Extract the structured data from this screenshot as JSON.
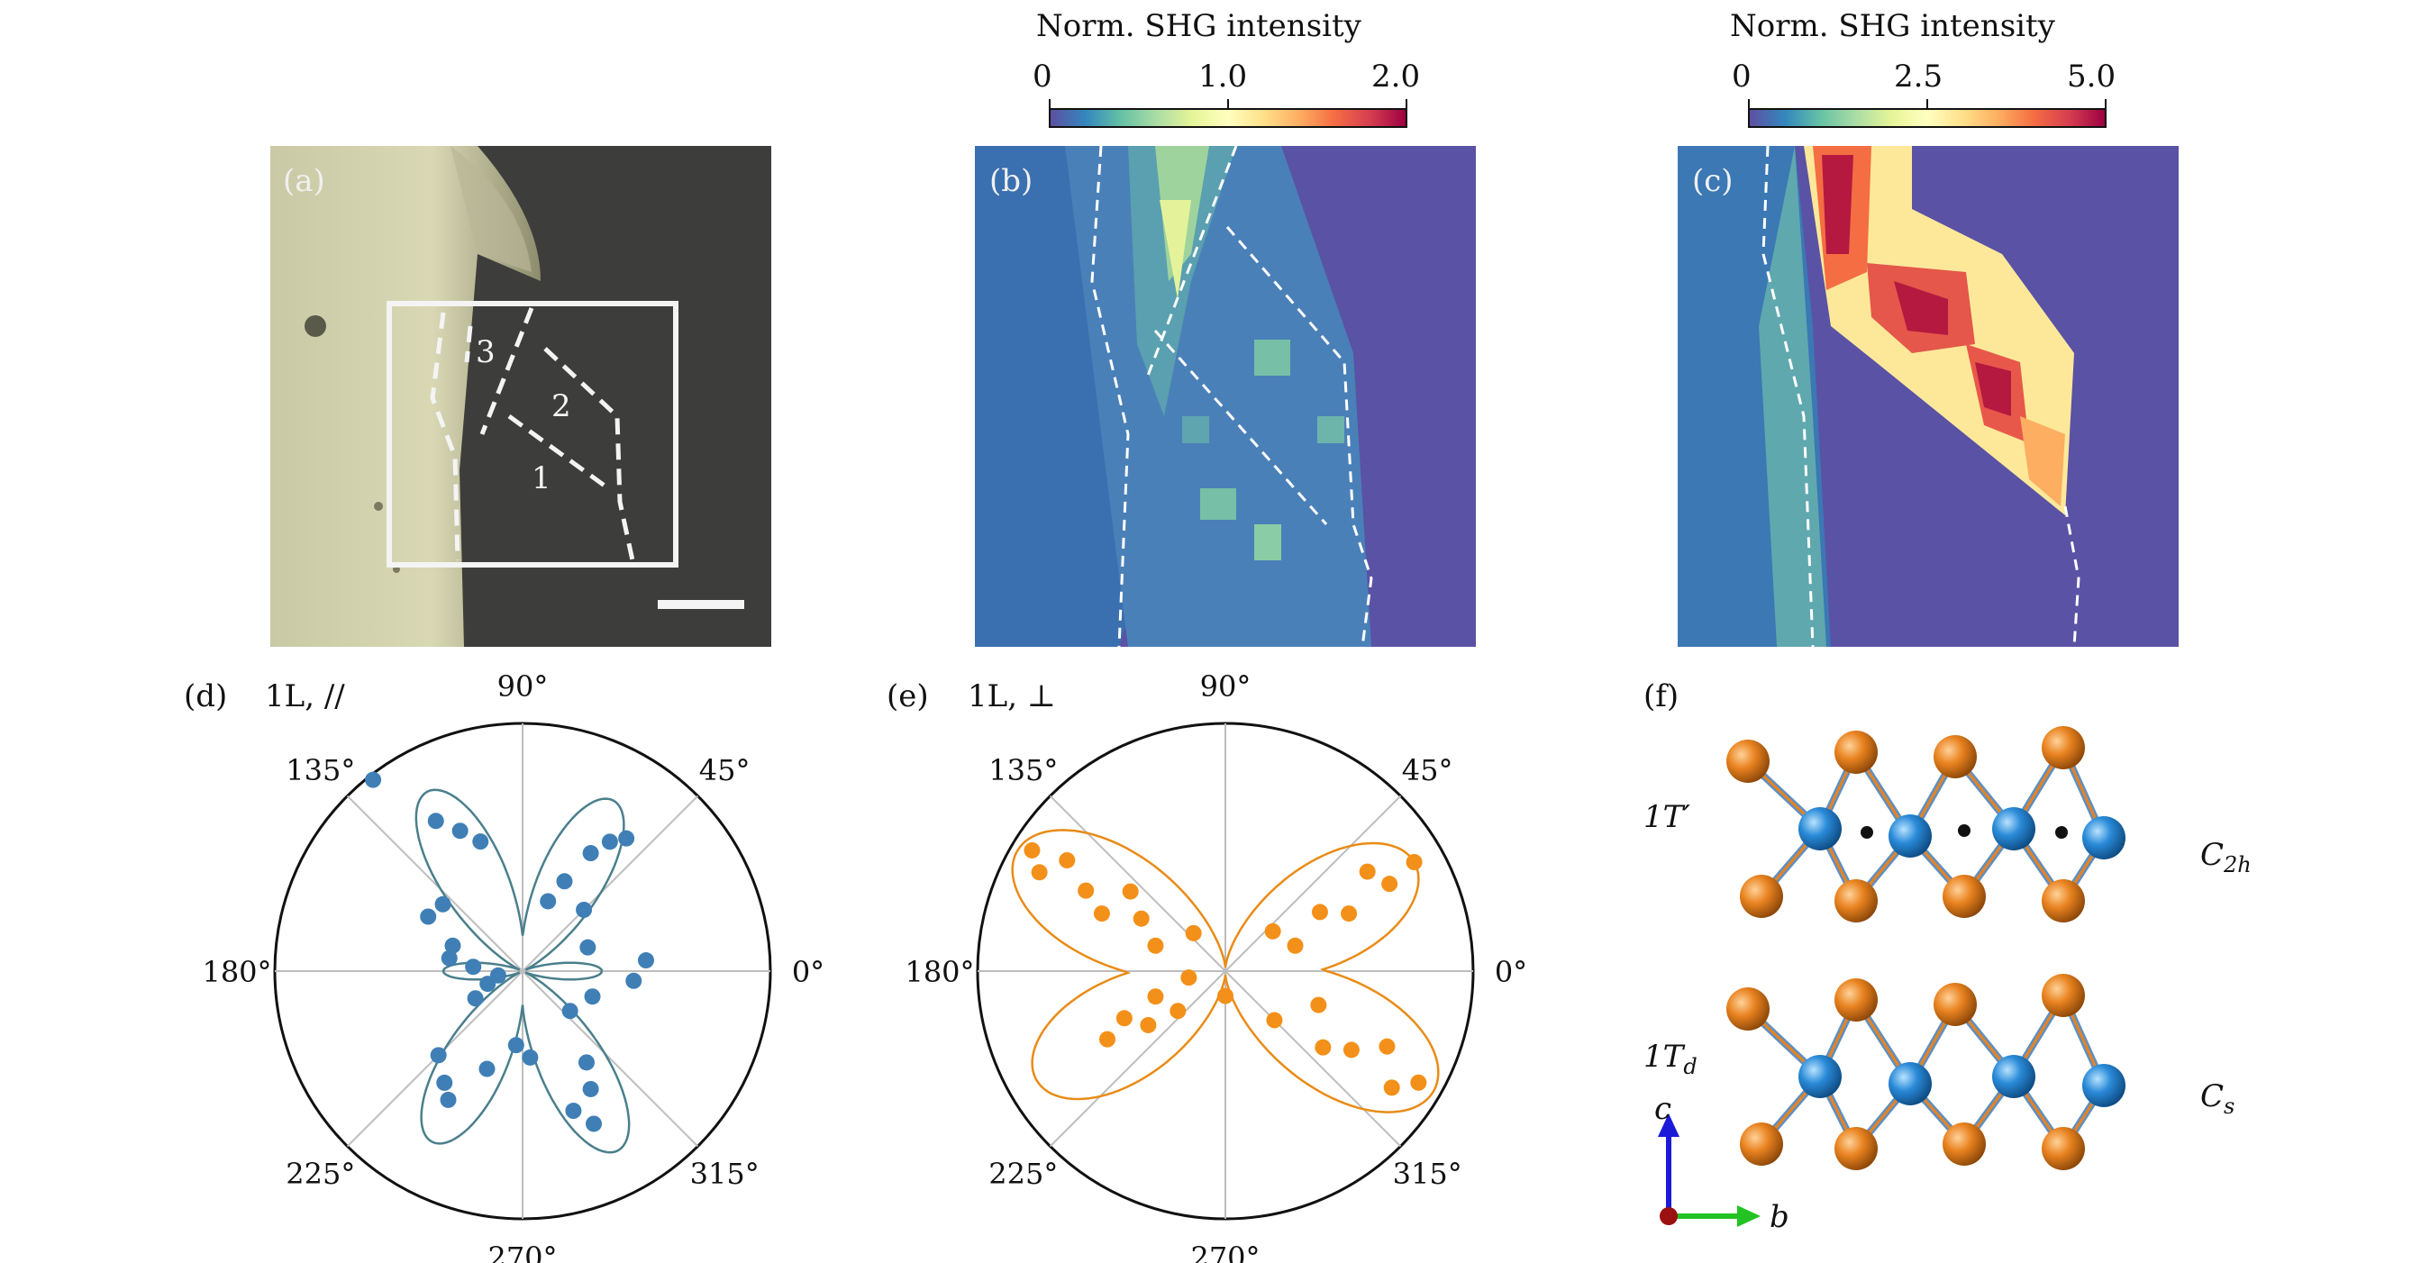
{
  "colorbar_b": {
    "title": "Norm. SHG intensity",
    "ticks": [
      "0",
      "1.0",
      "2.0"
    ]
  },
  "colorbar_c": {
    "title": "Norm. SHG intensity",
    "ticks": [
      "0",
      "2.5",
      "5.0"
    ]
  },
  "panel_a": {
    "label": "(a)",
    "region_labels": [
      "3",
      "2",
      "1"
    ]
  },
  "panel_b": {
    "label": "(b)"
  },
  "panel_c": {
    "label": "(c)"
  },
  "panel_d": {
    "label": "(d)",
    "title": "1L, //"
  },
  "panel_e": {
    "label": "(e)",
    "title": "1L, ⊥"
  },
  "panel_f": {
    "label": "(f)",
    "phase_top": "1T′",
    "phase_bottom": "1T",
    "phase_bottom_sub": "d",
    "sym_top": "C",
    "sym_top_sub": "2h",
    "sym_bottom": "C",
    "sym_bottom_sub": "s",
    "axis_c": "c",
    "axis_b": "b"
  },
  "polar_angle_labels": [
    "90°",
    "45°",
    "0°",
    "315°",
    "270°",
    "225°",
    "180°",
    "135°"
  ],
  "colors": {
    "data_blue": "#3f7fb5",
    "fit_blue": "#4a7f8c",
    "data_orange": "#f39019",
    "fit_orange": "#e98b16",
    "map_background": "#5a52a5",
    "atom_orange": "#e98320",
    "atom_blue": "#2a8ad8"
  },
  "chart_data": [
    {
      "type": "scatter",
      "panel": "d",
      "coordinate_system": "polar",
      "title": "1L, //",
      "angle_ticks_deg": [
        0,
        45,
        90,
        135,
        180,
        225,
        270,
        315
      ],
      "fit": "four-lobe (lobes along ~62°, ~118°, ~242°, ~298°)",
      "points": [
        {
          "theta_deg": 128,
          "r": 0.98
        },
        {
          "theta_deg": 120,
          "r": 0.7
        },
        {
          "theta_deg": 114,
          "r": 0.62
        },
        {
          "theta_deg": 108,
          "r": 0.55
        },
        {
          "theta_deg": 140,
          "r": 0.42
        },
        {
          "theta_deg": 150,
          "r": 0.44
        },
        {
          "theta_deg": 160,
          "r": 0.3
        },
        {
          "theta_deg": 170,
          "r": 0.3
        },
        {
          "theta_deg": 175,
          "r": 0.2
        },
        {
          "theta_deg": 60,
          "r": 0.55
        },
        {
          "theta_deg": 56,
          "r": 0.63
        },
        {
          "theta_deg": 52,
          "r": 0.68
        },
        {
          "theta_deg": 65,
          "r": 0.4
        },
        {
          "theta_deg": 70,
          "r": 0.3
        },
        {
          "theta_deg": 45,
          "r": 0.35
        },
        {
          "theta_deg": 20,
          "r": 0.28
        },
        {
          "theta_deg": 5,
          "r": 0.5
        },
        {
          "theta_deg": 355,
          "r": 0.45
        },
        {
          "theta_deg": 340,
          "r": 0.3
        },
        {
          "theta_deg": 320,
          "r": 0.25
        },
        {
          "theta_deg": 300,
          "r": 0.55
        },
        {
          "theta_deg": 295,
          "r": 0.68
        },
        {
          "theta_deg": 290,
          "r": 0.6
        },
        {
          "theta_deg": 305,
          "r": 0.45
        },
        {
          "theta_deg": 240,
          "r": 0.6
        },
        {
          "theta_deg": 235,
          "r": 0.55
        },
        {
          "theta_deg": 250,
          "r": 0.42
        },
        {
          "theta_deg": 225,
          "r": 0.48
        },
        {
          "theta_deg": 210,
          "r": 0.22
        },
        {
          "theta_deg": 200,
          "r": 0.15
        },
        {
          "theta_deg": 190,
          "r": 0.1
        },
        {
          "theta_deg": 265,
          "r": 0.3
        },
        {
          "theta_deg": 275,
          "r": 0.35
        }
      ]
    },
    {
      "type": "scatter",
      "panel": "e",
      "coordinate_system": "polar",
      "title": "1L, ⊥",
      "angle_ticks_deg": [
        0,
        45,
        90,
        135,
        180,
        225,
        270,
        315
      ],
      "fit": "two-lobe (lobes along ~150°/330° and ~30°/210°)",
      "points": [
        {
          "theta_deg": 148,
          "r": 0.92
        },
        {
          "theta_deg": 152,
          "r": 0.85
        },
        {
          "theta_deg": 145,
          "r": 0.78
        },
        {
          "theta_deg": 150,
          "r": 0.65
        },
        {
          "theta_deg": 155,
          "r": 0.55
        },
        {
          "theta_deg": 140,
          "r": 0.5
        },
        {
          "theta_deg": 148,
          "r": 0.4
        },
        {
          "theta_deg": 160,
          "r": 0.3
        },
        {
          "theta_deg": 130,
          "r": 0.2
        },
        {
          "theta_deg": 30,
          "r": 0.88
        },
        {
          "theta_deg": 28,
          "r": 0.75
        },
        {
          "theta_deg": 35,
          "r": 0.7
        },
        {
          "theta_deg": 25,
          "r": 0.55
        },
        {
          "theta_deg": 32,
          "r": 0.45
        },
        {
          "theta_deg": 20,
          "r": 0.3
        },
        {
          "theta_deg": 40,
          "r": 0.25
        },
        {
          "theta_deg": 330,
          "r": 0.9
        },
        {
          "theta_deg": 325,
          "r": 0.82
        },
        {
          "theta_deg": 335,
          "r": 0.72
        },
        {
          "theta_deg": 328,
          "r": 0.6
        },
        {
          "theta_deg": 322,
          "r": 0.5
        },
        {
          "theta_deg": 340,
          "r": 0.4
        },
        {
          "theta_deg": 315,
          "r": 0.28
        },
        {
          "theta_deg": 210,
          "r": 0.55
        },
        {
          "theta_deg": 205,
          "r": 0.45
        },
        {
          "theta_deg": 215,
          "r": 0.38
        },
        {
          "theta_deg": 200,
          "r": 0.3
        },
        {
          "theta_deg": 220,
          "r": 0.25
        },
        {
          "theta_deg": 190,
          "r": 0.15
        },
        {
          "theta_deg": 270,
          "r": 0.1
        }
      ]
    }
  ]
}
